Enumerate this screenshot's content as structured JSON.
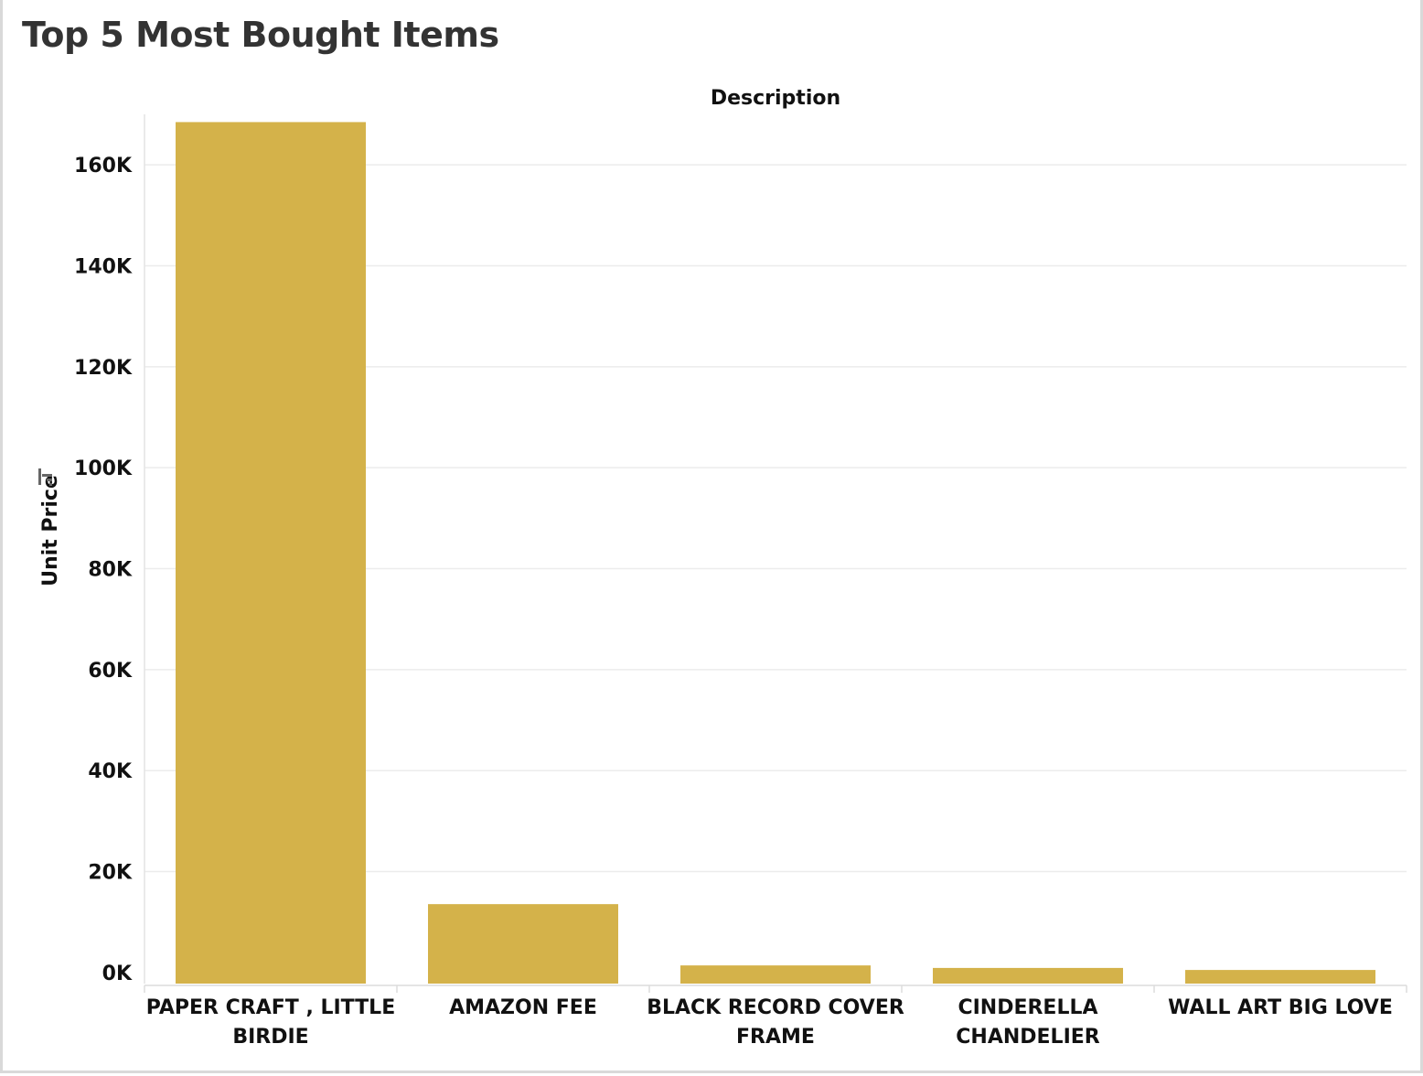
{
  "title": "Top 5 Most Bought Items",
  "chart_data": {
    "type": "bar",
    "title": "Top 5 Most Bought Items",
    "column_header": "Description",
    "ylabel": "Unit Price",
    "categories": [
      [
        "PAPER CRAFT , LITTLE",
        "BIRDIE"
      ],
      [
        "AMAZON FEE"
      ],
      [
        "BLACK RECORD COVER",
        "FRAME"
      ],
      [
        "CINDERELLA",
        "CHANDELIER"
      ],
      [
        "WALL ART BIG LOVE"
      ]
    ],
    "values": [
      168470,
      13542,
      1400,
      900,
      500
    ],
    "yticks": [
      0,
      20000,
      40000,
      60000,
      80000,
      100000,
      120000,
      140000,
      160000
    ],
    "ytick_labels": [
      "0K",
      "20K",
      "40K",
      "60K",
      "80K",
      "100K",
      "120K",
      "140K",
      "160K"
    ],
    "ylim": [
      -2200,
      170000
    ],
    "grid": true,
    "bar_color": "#D4B24A",
    "sort_icon": "sort-descending-icon"
  }
}
